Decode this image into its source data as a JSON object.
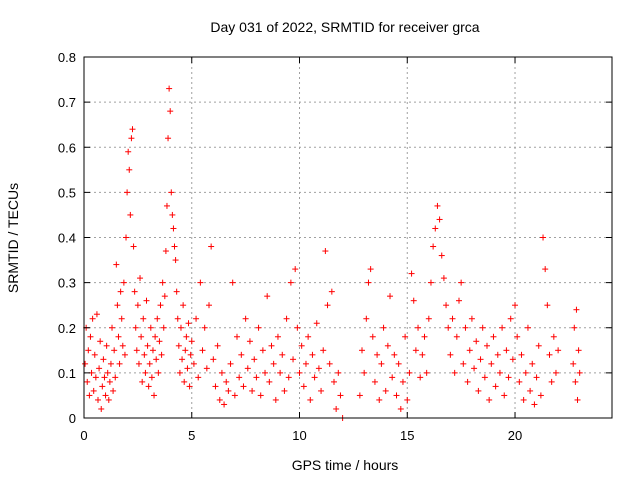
{
  "chart_data": {
    "type": "scatter",
    "title": "Day 031 of 2022, SRMTID for receiver grca",
    "xlabel": "GPS time / hours",
    "ylabel": "SRMTID / TECUs",
    "xlim": [
      0,
      24.5
    ],
    "ylim": [
      0,
      0.8
    ],
    "xticks": [
      0,
      5,
      10,
      15,
      20
    ],
    "yticks": [
      0,
      0.1,
      0.2,
      0.3,
      0.4,
      0.5,
      0.6,
      0.7,
      0.8
    ],
    "xtick_labels": [
      "0",
      "5",
      "10",
      "15",
      "20"
    ],
    "ytick_labels": [
      "0",
      "0.1",
      "0.2",
      "0.3",
      "0.4",
      "0.5",
      "0.6",
      "0.7",
      "0.8"
    ],
    "grid": true,
    "marker": "+",
    "color": "#ff0000",
    "series": [
      {
        "name": "SRMTID",
        "points": [
          [
            0.05,
            0.12
          ],
          [
            0.1,
            0.2
          ],
          [
            0.15,
            0.08
          ],
          [
            0.2,
            0.15
          ],
          [
            0.25,
            0.05
          ],
          [
            0.3,
            0.18
          ],
          [
            0.35,
            0.1
          ],
          [
            0.4,
            0.22
          ],
          [
            0.45,
            0.06
          ],
          [
            0.5,
            0.14
          ],
          [
            0.55,
            0.09
          ],
          [
            0.6,
            0.23
          ],
          [
            0.65,
            0.04
          ],
          [
            0.7,
            0.11
          ],
          [
            0.75,
            0.17
          ],
          [
            0.8,
            0.02
          ],
          [
            0.85,
            0.07
          ],
          [
            0.9,
            0.13
          ],
          [
            0.95,
            0.09
          ],
          [
            1.0,
            0.05
          ],
          [
            1.05,
            0.16
          ],
          [
            1.1,
            0.1
          ],
          [
            1.15,
            0.04
          ],
          [
            1.2,
            0.08
          ],
          [
            1.25,
            0.12
          ],
          [
            1.3,
            0.2
          ],
          [
            1.35,
            0.06
          ],
          [
            1.4,
            0.15
          ],
          [
            1.45,
            0.09
          ],
          [
            1.5,
            0.34
          ],
          [
            1.55,
            0.25
          ],
          [
            1.6,
            0.18
          ],
          [
            1.65,
            0.12
          ],
          [
            1.7,
            0.28
          ],
          [
            1.75,
            0.22
          ],
          [
            1.8,
            0.16
          ],
          [
            1.85,
            0.3
          ],
          [
            1.9,
            0.14
          ],
          [
            1.95,
            0.4
          ],
          [
            2.0,
            0.5
          ],
          [
            2.05,
            0.59
          ],
          [
            2.1,
            0.55
          ],
          [
            2.15,
            0.45
          ],
          [
            2.2,
            0.62
          ],
          [
            2.25,
            0.64
          ],
          [
            2.3,
            0.38
          ],
          [
            2.35,
            0.28
          ],
          [
            2.4,
            0.2
          ],
          [
            2.45,
            0.15
          ],
          [
            2.5,
            0.25
          ],
          [
            2.55,
            0.12
          ],
          [
            2.6,
            0.31
          ],
          [
            2.65,
            0.18
          ],
          [
            2.7,
            0.08
          ],
          [
            2.75,
            0.22
          ],
          [
            2.8,
            0.14
          ],
          [
            2.85,
            0.1
          ],
          [
            2.9,
            0.26
          ],
          [
            2.95,
            0.16
          ],
          [
            3.0,
            0.07
          ],
          [
            3.05,
            0.12
          ],
          [
            3.1,
            0.2
          ],
          [
            3.15,
            0.09
          ],
          [
            3.2,
            0.15
          ],
          [
            3.25,
            0.05
          ],
          [
            3.3,
            0.18
          ],
          [
            3.35,
            0.13
          ],
          [
            3.4,
            0.22
          ],
          [
            3.45,
            0.1
          ],
          [
            3.5,
            0.17
          ],
          [
            3.55,
            0.25
          ],
          [
            3.6,
            0.14
          ],
          [
            3.65,
            0.3
          ],
          [
            3.7,
            0.2
          ],
          [
            3.75,
            0.27
          ],
          [
            3.8,
            0.37
          ],
          [
            3.85,
            0.47
          ],
          [
            3.9,
            0.62
          ],
          [
            3.95,
            0.73
          ],
          [
            4.0,
            0.68
          ],
          [
            4.05,
            0.5
          ],
          [
            4.1,
            0.45
          ],
          [
            4.15,
            0.42
          ],
          [
            4.2,
            0.38
          ],
          [
            4.25,
            0.35
          ],
          [
            4.3,
            0.28
          ],
          [
            4.35,
            0.22
          ],
          [
            4.4,
            0.16
          ],
          [
            4.45,
            0.1
          ],
          [
            4.5,
            0.2
          ],
          [
            4.55,
            0.13
          ],
          [
            4.6,
            0.25
          ],
          [
            4.65,
            0.08
          ],
          [
            4.7,
            0.15
          ],
          [
            4.75,
            0.18
          ],
          [
            4.8,
            0.11
          ],
          [
            4.85,
            0.21
          ],
          [
            4.9,
            0.07
          ],
          [
            4.95,
            0.14
          ],
          [
            5.0,
            0.17
          ],
          [
            5.1,
            0.12
          ],
          [
            5.2,
            0.22
          ],
          [
            5.3,
            0.09
          ],
          [
            5.4,
            0.3
          ],
          [
            5.5,
            0.15
          ],
          [
            5.6,
            0.2
          ],
          [
            5.7,
            0.11
          ],
          [
            5.8,
            0.25
          ],
          [
            5.9,
            0.38
          ],
          [
            6.0,
            0.13
          ],
          [
            6.1,
            0.07
          ],
          [
            6.2,
            0.16
          ],
          [
            6.3,
            0.04
          ],
          [
            6.4,
            0.1
          ],
          [
            6.5,
            0.03
          ],
          [
            6.6,
            0.08
          ],
          [
            6.7,
            0.06
          ],
          [
            6.8,
            0.12
          ],
          [
            6.9,
            0.3
          ],
          [
            7.0,
            0.05
          ],
          [
            7.1,
            0.18
          ],
          [
            7.2,
            0.09
          ],
          [
            7.3,
            0.14
          ],
          [
            7.4,
            0.07
          ],
          [
            7.5,
            0.22
          ],
          [
            7.6,
            0.11
          ],
          [
            7.7,
            0.17
          ],
          [
            7.8,
            0.06
          ],
          [
            7.9,
            0.13
          ],
          [
            8.0,
            0.09
          ],
          [
            8.1,
            0.2
          ],
          [
            8.2,
            0.05
          ],
          [
            8.3,
            0.15
          ],
          [
            8.4,
            0.1
          ],
          [
            8.5,
            0.27
          ],
          [
            8.6,
            0.08
          ],
          [
            8.7,
            0.16
          ],
          [
            8.8,
            0.12
          ],
          [
            8.9,
            0.04
          ],
          [
            9.0,
            0.18
          ],
          [
            9.1,
            0.1
          ],
          [
            9.2,
            0.14
          ],
          [
            9.3,
            0.06
          ],
          [
            9.4,
            0.22
          ],
          [
            9.5,
            0.09
          ],
          [
            9.6,
            0.3
          ],
          [
            9.7,
            0.13
          ],
          [
            9.8,
            0.33
          ],
          [
            9.9,
            0.2
          ],
          [
            10.0,
            0.1
          ],
          [
            10.1,
            0.16
          ],
          [
            10.2,
            0.07
          ],
          [
            10.3,
            0.12
          ],
          [
            10.4,
            0.18
          ],
          [
            10.5,
            0.04
          ],
          [
            10.6,
            0.14
          ],
          [
            10.7,
            0.09
          ],
          [
            10.8,
            0.21
          ],
          [
            10.9,
            0.11
          ],
          [
            11.0,
            0.06
          ],
          [
            11.1,
            0.15
          ],
          [
            11.2,
            0.37
          ],
          [
            11.3,
            0.25
          ],
          [
            11.4,
            0.12
          ],
          [
            11.5,
            0.28
          ],
          [
            11.6,
            0.08
          ],
          [
            11.7,
            0.02
          ],
          [
            11.8,
            0.1
          ],
          [
            11.9,
            0.05
          ],
          [
            12.0,
            0.0
          ],
          [
            12.8,
            0.05
          ],
          [
            12.9,
            0.15
          ],
          [
            13.0,
            0.1
          ],
          [
            13.1,
            0.22
          ],
          [
            13.2,
            0.3
          ],
          [
            13.3,
            0.33
          ],
          [
            13.4,
            0.18
          ],
          [
            13.5,
            0.08
          ],
          [
            13.6,
            0.14
          ],
          [
            13.7,
            0.04
          ],
          [
            13.8,
            0.12
          ],
          [
            13.9,
            0.2
          ],
          [
            14.0,
            0.06
          ],
          [
            14.1,
            0.16
          ],
          [
            14.2,
            0.27
          ],
          [
            14.3,
            0.09
          ],
          [
            14.4,
            0.14
          ],
          [
            14.5,
            0.05
          ],
          [
            14.6,
            0.12
          ],
          [
            14.7,
            0.02
          ],
          [
            14.8,
            0.08
          ],
          [
            14.9,
            0.18
          ],
          [
            15.0,
            0.04
          ],
          [
            15.1,
            0.1
          ],
          [
            15.2,
            0.32
          ],
          [
            15.3,
            0.26
          ],
          [
            15.4,
            0.15
          ],
          [
            15.5,
            0.2
          ],
          [
            15.6,
            0.09
          ],
          [
            15.7,
            0.14
          ],
          [
            15.8,
            0.18
          ],
          [
            15.9,
            0.1
          ],
          [
            16.0,
            0.22
          ],
          [
            16.1,
            0.3
          ],
          [
            16.2,
            0.38
          ],
          [
            16.3,
            0.42
          ],
          [
            16.4,
            0.47
          ],
          [
            16.5,
            0.44
          ],
          [
            16.6,
            0.36
          ],
          [
            16.7,
            0.31
          ],
          [
            16.8,
            0.25
          ],
          [
            16.9,
            0.2
          ],
          [
            17.0,
            0.14
          ],
          [
            17.1,
            0.22
          ],
          [
            17.2,
            0.1
          ],
          [
            17.3,
            0.18
          ],
          [
            17.4,
            0.26
          ],
          [
            17.5,
            0.3
          ],
          [
            17.6,
            0.12
          ],
          [
            17.7,
            0.2
          ],
          [
            17.8,
            0.08
          ],
          [
            17.9,
            0.15
          ],
          [
            18.0,
            0.22
          ],
          [
            18.1,
            0.11
          ],
          [
            18.2,
            0.17
          ],
          [
            18.3,
            0.06
          ],
          [
            18.4,
            0.13
          ],
          [
            18.5,
            0.2
          ],
          [
            18.6,
            0.09
          ],
          [
            18.7,
            0.16
          ],
          [
            18.8,
            0.04
          ],
          [
            18.9,
            0.12
          ],
          [
            19.0,
            0.18
          ],
          [
            19.1,
            0.07
          ],
          [
            19.2,
            0.14
          ],
          [
            19.3,
            0.1
          ],
          [
            19.4,
            0.2
          ],
          [
            19.5,
            0.05
          ],
          [
            19.6,
            0.15
          ],
          [
            19.7,
            0.09
          ],
          [
            19.8,
            0.22
          ],
          [
            19.9,
            0.13
          ],
          [
            20.0,
            0.25
          ],
          [
            20.1,
            0.18
          ],
          [
            20.2,
            0.08
          ],
          [
            20.3,
            0.14
          ],
          [
            20.4,
            0.04
          ],
          [
            20.5,
            0.1
          ],
          [
            20.6,
            0.2
          ],
          [
            20.7,
            0.06
          ],
          [
            20.8,
            0.12
          ],
          [
            20.9,
            0.03
          ],
          [
            21.0,
            0.09
          ],
          [
            21.1,
            0.16
          ],
          [
            21.2,
            0.05
          ],
          [
            21.3,
            0.4
          ],
          [
            21.4,
            0.33
          ],
          [
            21.5,
            0.25
          ],
          [
            21.6,
            0.14
          ],
          [
            21.7,
            0.08
          ],
          [
            21.8,
            0.18
          ],
          [
            21.9,
            0.1
          ],
          [
            22.0,
            0.15
          ],
          [
            22.7,
            0.12
          ],
          [
            22.75,
            0.2
          ],
          [
            22.8,
            0.08
          ],
          [
            22.85,
            0.24
          ],
          [
            22.9,
            0.04
          ],
          [
            22.95,
            0.15
          ],
          [
            23.0,
            0.1
          ]
        ]
      }
    ]
  }
}
